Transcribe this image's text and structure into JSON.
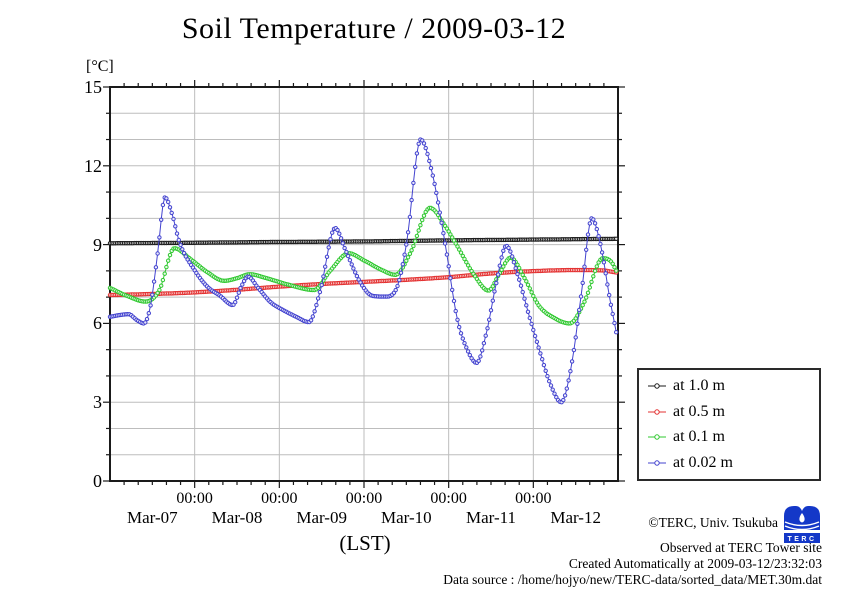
{
  "chart": {
    "title": "Soil Temperature / 2009-03-12",
    "y_unit_label": "[°C]",
    "x_axis_label": "(LST)"
  },
  "chart_data": {
    "type": "line",
    "title": "Soil Temperature / 2009-03-12",
    "xlabel": "(LST)",
    "ylabel": "[°C]",
    "ylim": [
      0,
      15
    ],
    "y_ticks_major": [
      0,
      3,
      6,
      9,
      12,
      15
    ],
    "y_minor_step": 1,
    "x_range_days": [
      0,
      6
    ],
    "x_major_ticks_days": [
      1,
      2,
      3,
      4,
      5
    ],
    "x_minor_ticks_per_day": 6,
    "x_time_tick_label": "00:00",
    "x_day_labels": [
      "Mar-07",
      "Mar-08",
      "Mar-09",
      "Mar-10",
      "Mar-11",
      "Mar-12"
    ],
    "grid": true,
    "legend_position": "outside-right-bottom",
    "sample_interval_days": 0.0208333,
    "series": [
      {
        "name": "at 1.0 m",
        "color": "#1a1a1a",
        "points": [
          [
            0,
            9.05
          ],
          [
            1,
            9.07
          ],
          [
            2,
            9.1
          ],
          [
            3,
            9.12
          ],
          [
            4,
            9.16
          ],
          [
            5,
            9.19
          ],
          [
            5.98,
            9.22
          ]
        ]
      },
      {
        "name": "at 0.5 m",
        "color": "#e33030",
        "points": [
          [
            0,
            7.08
          ],
          [
            0.5,
            7.12
          ],
          [
            1,
            7.18
          ],
          [
            1.5,
            7.28
          ],
          [
            2,
            7.4
          ],
          [
            2.5,
            7.5
          ],
          [
            3,
            7.58
          ],
          [
            3.5,
            7.66
          ],
          [
            4,
            7.76
          ],
          [
            4.5,
            7.9
          ],
          [
            5,
            7.99
          ],
          [
            5.5,
            8.03
          ],
          [
            5.8,
            8.02
          ],
          [
            5.98,
            7.94
          ]
        ]
      },
      {
        "name": "at 0.1 m",
        "color": "#2fc82f",
        "points": [
          [
            0,
            7.35
          ],
          [
            0.2,
            7.05
          ],
          [
            0.42,
            6.83
          ],
          [
            0.58,
            7.25
          ],
          [
            0.76,
            8.86
          ],
          [
            0.95,
            8.45
          ],
          [
            1.15,
            7.95
          ],
          [
            1.35,
            7.62
          ],
          [
            1.5,
            7.72
          ],
          [
            1.65,
            7.87
          ],
          [
            1.85,
            7.72
          ],
          [
            2.1,
            7.48
          ],
          [
            2.41,
            7.27
          ],
          [
            2.6,
            8.0
          ],
          [
            2.82,
            8.67
          ],
          [
            3.0,
            8.4
          ],
          [
            3.2,
            8.05
          ],
          [
            3.37,
            7.85
          ],
          [
            3.55,
            8.7
          ],
          [
            3.78,
            10.4
          ],
          [
            3.95,
            9.75
          ],
          [
            4.1,
            8.95
          ],
          [
            4.3,
            7.85
          ],
          [
            4.47,
            7.25
          ],
          [
            4.6,
            7.9
          ],
          [
            4.73,
            8.5
          ],
          [
            4.9,
            7.7
          ],
          [
            5.06,
            6.7
          ],
          [
            5.25,
            6.2
          ],
          [
            5.43,
            6.0
          ],
          [
            5.6,
            6.8
          ],
          [
            5.82,
            8.48
          ],
          [
            5.92,
            8.35
          ],
          [
            5.98,
            8.0
          ]
        ]
      },
      {
        "name": "at 0.02 m",
        "color": "#4343cf",
        "points": [
          [
            0,
            6.25
          ],
          [
            0.12,
            6.32
          ],
          [
            0.22,
            6.35
          ],
          [
            0.32,
            6.12
          ],
          [
            0.4,
            6.0
          ],
          [
            0.48,
            6.7
          ],
          [
            0.56,
            8.6
          ],
          [
            0.65,
            10.8
          ],
          [
            0.73,
            10.2
          ],
          [
            0.82,
            9.1
          ],
          [
            1.0,
            8.02
          ],
          [
            1.15,
            7.4
          ],
          [
            1.3,
            7.05
          ],
          [
            1.45,
            6.7
          ],
          [
            1.55,
            7.4
          ],
          [
            1.63,
            7.78
          ],
          [
            1.75,
            7.35
          ],
          [
            1.9,
            6.8
          ],
          [
            2.05,
            6.5
          ],
          [
            2.2,
            6.25
          ],
          [
            2.35,
            6.05
          ],
          [
            2.48,
            7.2
          ],
          [
            2.66,
            9.63
          ],
          [
            2.78,
            8.8
          ],
          [
            2.95,
            7.6
          ],
          [
            3.1,
            7.05
          ],
          [
            3.25,
            7.02
          ],
          [
            3.38,
            7.3
          ],
          [
            3.5,
            9.0
          ],
          [
            3.67,
            13.0
          ],
          [
            3.8,
            11.8
          ],
          [
            3.95,
            9.2
          ],
          [
            4.1,
            6.2
          ],
          [
            4.22,
            5.0
          ],
          [
            4.33,
            4.5
          ],
          [
            4.45,
            5.7
          ],
          [
            4.56,
            7.5
          ],
          [
            4.68,
            8.95
          ],
          [
            4.82,
            7.8
          ],
          [
            4.95,
            6.3
          ],
          [
            5.07,
            5.0
          ],
          [
            5.2,
            3.7
          ],
          [
            5.33,
            3.0
          ],
          [
            5.45,
            4.4
          ],
          [
            5.57,
            7.2
          ],
          [
            5.69,
            10.0
          ],
          [
            5.8,
            8.9
          ],
          [
            5.9,
            7.0
          ],
          [
            5.98,
            5.65
          ]
        ]
      }
    ]
  },
  "attribution": {
    "copyright": "©TERC, Univ. Tsukuba",
    "observed": "Observed at TERC Tower site",
    "created": "Created Automatically at 2009-03-12/23:32:03",
    "datasource": "Data source : /home/hojyo/new/TERC-data/sorted_data/MET.30m.dat"
  },
  "logo": {
    "text": "TERC",
    "color": "#1438c8"
  },
  "style": {
    "grid_color": "#bdbdbd",
    "border_color": "#1a1a1a",
    "background": "#ffffff"
  }
}
